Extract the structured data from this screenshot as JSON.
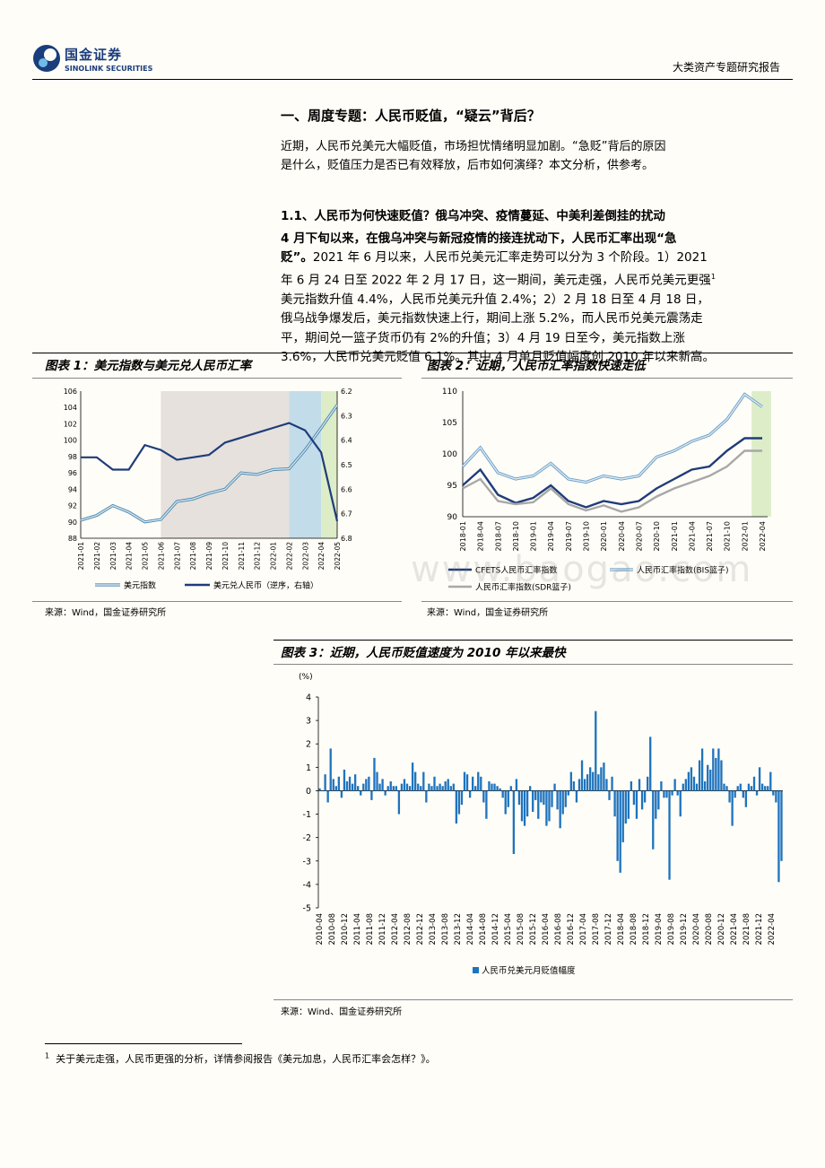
{
  "header": {
    "logo_cn": "国金证券",
    "logo_en": "SINOLINK SECURITIES",
    "doc_type": "大类资产专题研究报告"
  },
  "section_title": "一、周度专题：人民币贬值，“疑云”背后？",
  "intro": [
    "近期，人民币兑美元大幅贬值，市场担忧情绪明显加剧。“急贬”背后的原因",
    "是什么，贬值压力是否已有效释放，后市如何演绎？本文分析，供参考。"
  ],
  "subsection_title": "1.1、人民币为何快速贬值？俄乌冲突、疫情蔓延、中美利差倒挂的扰动",
  "body": {
    "bold_lead": "4 月下旬以来，在俄乌冲突与新冠疫情的接连扰动下，人民币汇率出现“急",
    "bold_lead2": "贬”。",
    "rest_line1": "2021 年 6 月以来，人民币兑美元汇率走势可以分为 3 个阶段。1）2021",
    "lines": [
      "年 6 月 24 日至 2022 年 2 月 17 日，这一期间，美元走强，人民币兑美元更强",
      "美元指数升值 4.4%，人民币兑美元升值 2.4%；2）2 月 18 日至 4 月 18 日，",
      "俄乌战争爆发后，美元指数快速上行，期间上涨 5.2%，而人民币兑美元震荡走",
      "平，期间兑一篮子货币仍有 2%的升值；3）4 月 19 日至今，美元指数上涨",
      "3.6%，人民币兑美元贬值 6.1%。其中 4 月单月贬值幅度创 2010 年以来新高。"
    ],
    "footnote_mark": "1"
  },
  "fig1": {
    "title": "图表 1：美元指数与美元兑人民币汇率",
    "source": "来源：Wind，国金证券研究所",
    "chart_data": {
      "type": "line",
      "x": [
        "2021-01",
        "2021-02",
        "2021-03",
        "2021-04",
        "2021-05",
        "2021-06",
        "2021-07",
        "2021-08",
        "2021-09",
        "2021-10",
        "2021-11",
        "2021-12",
        "2022-01",
        "2022-02",
        "2022-03",
        "2022-04",
        "2022-05"
      ],
      "ylim_left": [
        88,
        106
      ],
      "ylim_right": [
        6.2,
        6.8
      ],
      "right_axis_reversed": true,
      "yticks_left": [
        "106",
        "104",
        "102",
        "100",
        "98",
        "96",
        "94",
        "92",
        "90",
        "88"
      ],
      "yticks_right": [
        "6.2",
        "6.3",
        "6.4",
        "6.5",
        "6.6",
        "6.7",
        "6.8"
      ],
      "series": [
        {
          "name": "美元指数",
          "axis": "left",
          "color": "#7fb8d8",
          "values": [
            90.2,
            90.8,
            92.0,
            91.2,
            90.0,
            90.3,
            92.5,
            92.8,
            93.5,
            94.0,
            96.0,
            95.8,
            96.4,
            96.5,
            98.8,
            101.5,
            104.3
          ]
        },
        {
          "name": "美元兑人民币（逆序，右轴）",
          "axis": "right",
          "color": "#1f3c7a",
          "values": [
            6.47,
            6.47,
            6.52,
            6.52,
            6.42,
            6.44,
            6.48,
            6.47,
            6.46,
            6.41,
            6.39,
            6.37,
            6.35,
            6.33,
            6.36,
            6.45,
            6.73
          ]
        }
      ],
      "shaded": [
        {
          "from": "2021-06",
          "to": "2022-02",
          "color": "#e6e1dc"
        },
        {
          "from": "2022-02",
          "to": "2022-04",
          "color": "#c3dcea"
        },
        {
          "from": "2022-04",
          "to": "2022-05",
          "color": "#dcedc8"
        }
      ],
      "legend": [
        "美元指数",
        "美元兑人民币（逆序，右轴）"
      ]
    }
  },
  "fig2": {
    "title": "图表 2：近期，人民币汇率指数快速走低",
    "source": "来源：Wind，国金证券研究所",
    "chart_data": {
      "type": "line",
      "x": [
        "2018-01",
        "2018-04",
        "2018-07",
        "2018-10",
        "2019-01",
        "2019-04",
        "2019-07",
        "2019-10",
        "2020-01",
        "2020-04",
        "2020-07",
        "2020-10",
        "2021-01",
        "2021-04",
        "2021-07",
        "2021-10",
        "2022-01",
        "2022-04"
      ],
      "ylim": [
        90,
        110
      ],
      "yticks": [
        "110",
        "105",
        "100",
        "95",
        "90"
      ],
      "series": [
        {
          "name": "CFETS人民币汇率指数",
          "color": "#1f3c7a",
          "values": [
            95.0,
            97.5,
            93.5,
            92.2,
            93.0,
            95.0,
            92.5,
            91.5,
            92.5,
            92.0,
            92.5,
            94.5,
            96.0,
            97.5,
            98.0,
            100.5,
            102.5,
            102.5
          ]
        },
        {
          "name": "人民币汇率指数（BIS篮子）",
          "color": "#8bb6d6",
          "values": [
            98.0,
            101.0,
            97.0,
            96.0,
            96.5,
            98.5,
            96.0,
            95.5,
            96.5,
            96.0,
            96.5,
            99.5,
            100.5,
            102.0,
            103.0,
            105.5,
            109.5,
            107.5
          ]
        },
        {
          "name": "人民币汇率指数(SDR篮子)",
          "color": "#a8a8a8",
          "values": [
            94.5,
            96.0,
            92.5,
            92.0,
            92.3,
            94.5,
            92.0,
            91.0,
            91.8,
            90.8,
            91.5,
            93.2,
            94.5,
            95.5,
            96.5,
            98.0,
            100.5,
            100.5
          ]
        }
      ],
      "shaded": [
        {
          "from": "2022-03",
          "to": "2022-05",
          "color": "#dcedc8"
        }
      ],
      "legend": [
        "CFETS人民币汇率指数",
        "人民币汇率指数(BIS篮子)",
        "人民币汇率指数(SDR篮子)"
      ]
    }
  },
  "fig3": {
    "title": "图表 3：近期，人民币贬值速度为 2010 年以来最快",
    "source": "来源：Wind、国金证券研究所",
    "chart_data": {
      "type": "bar",
      "unit": "(%)",
      "ylim": [
        -5,
        4
      ],
      "yticks": [
        "4",
        "3",
        "2",
        "1",
        "0",
        "-1",
        "-2",
        "-3",
        "-4",
        "-5"
      ],
      "xticks": [
        "2010-04",
        "2010-08",
        "2010-12",
        "2011-04",
        "2011-08",
        "2011-12",
        "2012-04",
        "2012-08",
        "2012-12",
        "2013-04",
        "2013-08",
        "2013-12",
        "2014-04",
        "2014-08",
        "2014-12",
        "2015-04",
        "2015-08",
        "2015-12",
        "2016-04",
        "2016-08",
        "2016-12",
        "2017-04",
        "2017-08",
        "2017-12",
        "2018-04",
        "2018-08",
        "2018-12",
        "2019-04",
        "2019-08",
        "2019-12",
        "2020-04",
        "2020-08",
        "2020-12",
        "2021-04",
        "2021-08",
        "2021-12",
        "2022-04"
      ],
      "series": [
        {
          "name": "人民币兑美元月贬值幅度",
          "color": "#1e73be",
          "values": [
            0.1,
            0.0,
            0.7,
            -0.5,
            1.8,
            0.5,
            0.2,
            0.6,
            -0.3,
            0.9,
            0.4,
            0.6,
            0.3,
            0.7,
            0.2,
            -0.2,
            0.3,
            0.5,
            0.6,
            -0.4,
            1.4,
            0.8,
            0.3,
            0.5,
            -0.2,
            0.2,
            0.4,
            0.2,
            0.2,
            -1.0,
            0.3,
            0.5,
            0.3,
            0.2,
            1.2,
            0.8,
            0.3,
            0.2,
            0.8,
            -0.5,
            0.3,
            0.2,
            0.6,
            0.2,
            0.3,
            0.2,
            0.4,
            0.5,
            0.2,
            0.3,
            -1.4,
            -1.0,
            -0.6,
            0.8,
            0.7,
            -0.3,
            0.6,
            0.2,
            0.8,
            0.6,
            -0.5,
            -1.2,
            0.4,
            0.3,
            0.3,
            0.2,
            0.1,
            -0.3,
            -1.0,
            -0.7,
            0.2,
            -2.7,
            0.5,
            -0.6,
            -1.3,
            -1.5,
            -1.1,
            0.2,
            -0.9,
            -0.4,
            -1.2,
            -0.5,
            -0.6,
            -1.5,
            -1.3,
            -0.7,
            0.3,
            -0.8,
            -1.6,
            -1.0,
            -0.7,
            -0.2,
            0.8,
            0.4,
            -0.5,
            0.5,
            1.3,
            0.5,
            0.7,
            1.0,
            0.8,
            3.4,
            0.7,
            1.0,
            1.2,
            0.5,
            -0.4,
            0.6,
            -1.1,
            -3.0,
            -3.5,
            -2.2,
            -1.4,
            -1.2,
            0.4,
            -0.6,
            -1.2,
            0.5,
            -0.8,
            -0.5,
            0.6,
            2.3,
            -2.5,
            -1.2,
            -0.8,
            0.4,
            -0.3,
            -0.3,
            -3.8,
            -0.2,
            0.5,
            -0.2,
            -1.1,
            0.3,
            0.5,
            0.8,
            1.0,
            0.6,
            0.3,
            1.3,
            1.8,
            0.4,
            1.1,
            0.9,
            1.8,
            1.4,
            1.8,
            1.3,
            0.3,
            0.2,
            -0.5,
            -1.5,
            -0.3,
            0.2,
            0.3,
            -0.3,
            -0.7,
            0.3,
            0.2,
            0.6,
            -0.2,
            1.0,
            0.3,
            0.2,
            0.2,
            0.8,
            -0.2,
            -0.5,
            -3.9,
            -3.0
          ]
        }
      ],
      "legend": [
        "人民币兑美元月贬值幅度"
      ]
    }
  },
  "footnote": {
    "mark": "1",
    "text": "关于美元走强，人民币更强的分析，详情参阅报告《美元加息，人民币汇率会怎样？》。"
  },
  "watermark": "www.baogao.com"
}
